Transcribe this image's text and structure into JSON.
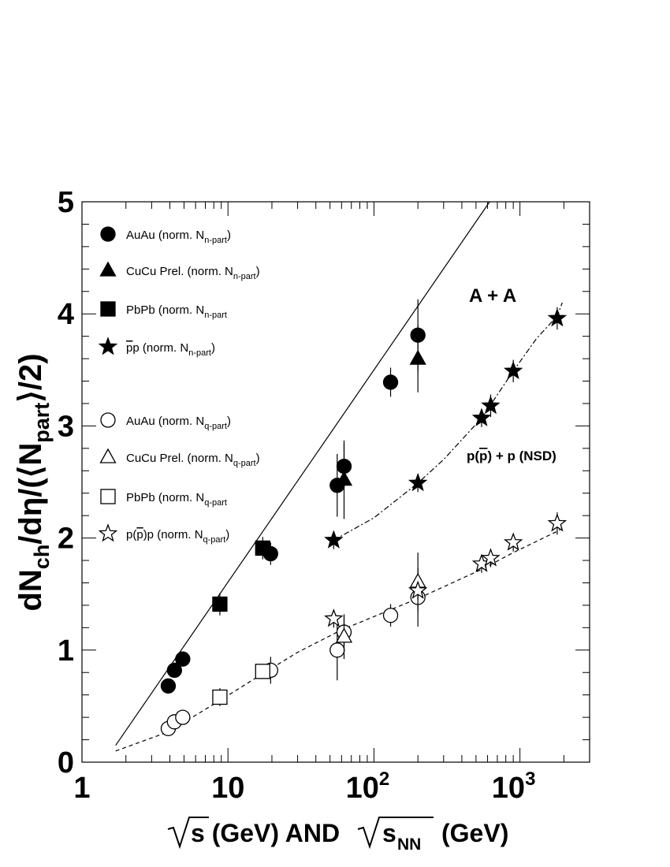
{
  "chart_data": {
    "type": "scatter",
    "x_scale": "log",
    "xlim": [
      1,
      3000
    ],
    "ylim": [
      0,
      5
    ],
    "x_ticks": [
      {
        "value": 1,
        "label": "1",
        "sup": ""
      },
      {
        "value": 10,
        "label": "10",
        "sup": ""
      },
      {
        "value": 100,
        "label": "10",
        "sup": "2"
      },
      {
        "value": 1000,
        "label": "10",
        "sup": "3"
      }
    ],
    "y_ticks": [
      "0",
      "1",
      "2",
      "3",
      "4",
      "5"
    ],
    "xlabel": {
      "part1": "s (GeV) AND",
      "part2": "s",
      "sub": "NN",
      "part3": "(GeV)"
    },
    "ylabel": {
      "a": "dN",
      "a_sub": "ch",
      "b": "/dη/(⟨N",
      "b_sub": "part",
      "c": "⟩/2)"
    },
    "annotations": {
      "aa": "A + A",
      "pp_prefix": "p(",
      "pp_bar_p": "p",
      "pp_suffix": ") + p (NSD)"
    },
    "legend": [
      {
        "marker": "filled-circle",
        "text": "AuAu (norm. N",
        "sub": "n-part",
        "close": ")"
      },
      {
        "marker": "filled-triangle",
        "text": "CuCu Prel. (norm. N",
        "sub": "n-part",
        "close": ")"
      },
      {
        "marker": "filled-square",
        "text": "PbPb (norm. N",
        "sub": "n-part",
        "close": ""
      },
      {
        "marker": "filled-star",
        "text": "p (norm. N",
        "bar_p": "p",
        "sub": "n-part",
        "close": ")"
      },
      {
        "marker": "open-circle",
        "text": "AuAu (norm. N",
        "sub": "q-part",
        "close": ")"
      },
      {
        "marker": "open-triangle",
        "text": "CuCu Prel. (norm. N",
        "sub": "q-part",
        "close": ")"
      },
      {
        "marker": "open-square",
        "text": "PbPb (norm. N",
        "sub": "q-part",
        "close": ""
      },
      {
        "marker": "open-star",
        "text_pre": "p(",
        "bar_p": "p",
        "text": ")p (norm. N",
        "sub": "q-part",
        "close": ")"
      }
    ],
    "series": [
      {
        "marker": "filled-circle",
        "points": [
          [
            3.9,
            0.68,
            0.05
          ],
          [
            4.3,
            0.82,
            0.06
          ],
          [
            4.9,
            0.92,
            0.06
          ],
          [
            19.6,
            1.86,
            0.1
          ],
          [
            56,
            2.47,
            0.28
          ],
          [
            62.4,
            2.64,
            0.2
          ],
          [
            130,
            3.39,
            0.13
          ],
          [
            200,
            3.81,
            0.32
          ]
        ]
      },
      {
        "marker": "filled-triangle",
        "points": [
          [
            62.4,
            2.52,
            0.35
          ],
          [
            200,
            3.6,
            0.3
          ]
        ]
      },
      {
        "marker": "filled-square",
        "points": [
          [
            8.8,
            1.41,
            0.1
          ],
          [
            17.3,
            1.91,
            0.1
          ]
        ]
      },
      {
        "marker": "filled-star",
        "points": [
          [
            53,
            1.98,
            0.08
          ],
          [
            200,
            2.49,
            0.08
          ],
          [
            546,
            3.07,
            0.08
          ],
          [
            630,
            3.18,
            0.1
          ],
          [
            900,
            3.49,
            0.1
          ],
          [
            1800,
            3.96,
            0.1
          ]
        ]
      },
      {
        "marker": "open-circle",
        "points": [
          [
            3.9,
            0.3,
            0.05
          ],
          [
            4.3,
            0.36,
            0.05
          ],
          [
            4.9,
            0.4,
            0.06
          ],
          [
            19.6,
            0.82,
            0.12
          ],
          [
            56,
            1.0,
            0.27
          ],
          [
            62.4,
            1.16,
            0.14
          ],
          [
            130,
            1.31,
            0.1
          ],
          [
            200,
            1.47,
            0.26
          ]
        ]
      },
      {
        "marker": "open-triangle",
        "points": [
          [
            62.4,
            1.12,
            0.2
          ],
          [
            200,
            1.61,
            0.26
          ]
        ]
      },
      {
        "marker": "open-square",
        "points": [
          [
            8.8,
            0.58,
            0.08
          ],
          [
            17.3,
            0.81,
            0.06
          ]
        ]
      },
      {
        "marker": "open-star",
        "points": [
          [
            53,
            1.28,
            0.08
          ],
          [
            200,
            1.53,
            0.08
          ],
          [
            546,
            1.77,
            0.08
          ],
          [
            630,
            1.82,
            0.08
          ],
          [
            900,
            1.96,
            0.08
          ],
          [
            1800,
            2.13,
            0.1
          ]
        ]
      }
    ],
    "curves": [
      {
        "style": "solid",
        "x": [
          1.7,
          620
        ],
        "y": [
          0.15,
          5.0
        ]
      },
      {
        "style": "dashdot",
        "x": [
          53,
          100,
          200,
          300,
          546,
          630,
          900,
          1300,
          1800,
          1950
        ],
        "y": [
          1.98,
          2.18,
          2.49,
          2.7,
          3.07,
          3.19,
          3.49,
          3.78,
          3.98,
          4.1
        ]
      },
      {
        "style": "dashed",
        "x": [
          1.7,
          3.9,
          8.8,
          17.3,
          30,
          60,
          130,
          200,
          546,
          900,
          1800,
          2000
        ],
        "y": [
          0.1,
          0.27,
          0.55,
          0.79,
          0.98,
          1.18,
          1.36,
          1.46,
          1.72,
          1.87,
          2.06,
          2.1
        ]
      }
    ]
  }
}
